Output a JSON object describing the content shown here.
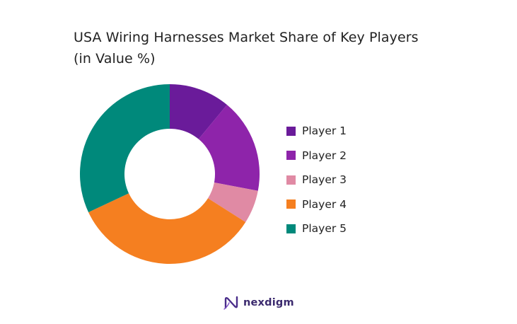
{
  "chart_data": {
    "type": "pie",
    "variant": "donut",
    "title_line1": "USA Wiring Harnesses Market Share of Key Players",
    "title_line2": "(in Value %)",
    "legend_position": "right",
    "series": [
      {
        "name": "Player 1",
        "value": 11,
        "color": "#6a1b9a"
      },
      {
        "name": "Player 2",
        "value": 17,
        "color": "#8e24aa"
      },
      {
        "name": "Player 3",
        "value": 6,
        "color": "#e08aa4"
      },
      {
        "name": "Player 4",
        "value": 34,
        "color": "#f57f20"
      },
      {
        "name": "Player 5",
        "value": 32,
        "color": "#00897b"
      }
    ]
  },
  "brand": {
    "name": "nexdigm",
    "logo_icon": "nexdigm-logo-icon",
    "color": "#3b2a6e"
  }
}
